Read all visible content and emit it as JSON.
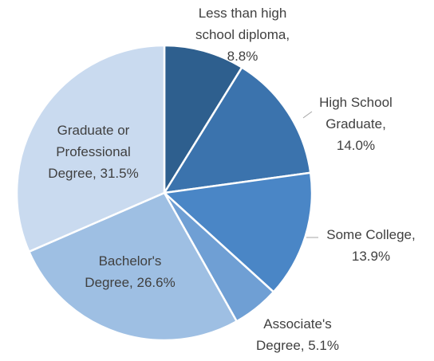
{
  "chart_data": {
    "type": "pie",
    "title": "",
    "start_angle_deg": 0,
    "direction": "clockwise",
    "legend": "none",
    "slices": [
      {
        "name": "Less than high school diploma",
        "value": 8.8,
        "label_lines": [
          "Less than high",
          "school diploma,",
          "8.8%"
        ],
        "color": "#2e5f8e"
      },
      {
        "name": "High School Graduate",
        "value": 14.0,
        "label_lines": [
          "High School",
          "Graduate,",
          "14.0%"
        ],
        "color": "#3b73ad"
      },
      {
        "name": "Some College",
        "value": 13.9,
        "label_lines": [
          "Some College,",
          "13.9%"
        ],
        "color": "#4a86c6"
      },
      {
        "name": "Associate's Degree",
        "value": 5.1,
        "label_lines": [
          "Associate's",
          "Degree, 5.1%"
        ],
        "color": "#6f9fd4"
      },
      {
        "name": "Bachelor's Degree",
        "value": 26.6,
        "label_lines": [
          "Bachelor's",
          "Degree, 26.6%"
        ],
        "color": "#9ebfe3"
      },
      {
        "name": "Graduate or Professional Degree",
        "value": 31.5,
        "label_lines": [
          "Graduate or",
          "Professional",
          "Degree, 31.5%"
        ],
        "color": "#c9daef"
      }
    ]
  }
}
